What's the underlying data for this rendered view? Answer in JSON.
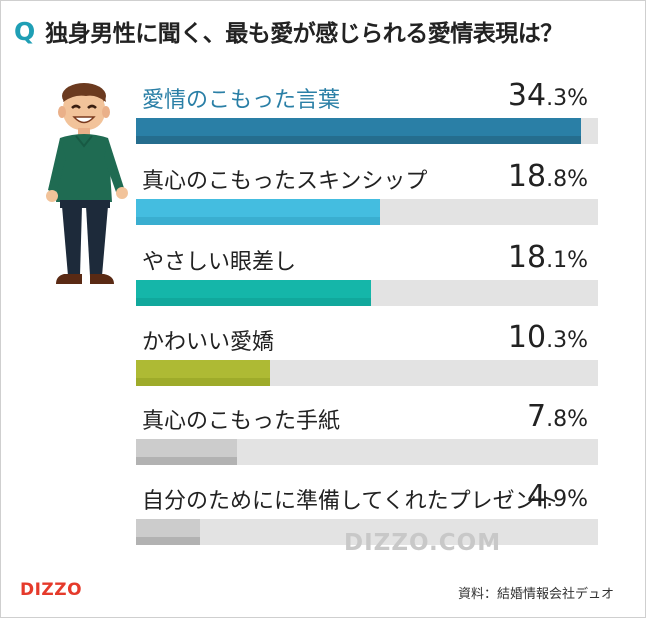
{
  "question": {
    "mark": "Q",
    "text": "独身男性に聞く、最も愛が感じられる愛情表現は？"
  },
  "chart_data": {
    "type": "bar",
    "orientation": "horizontal",
    "title": "独身男性に聞く、最も愛が感じられる愛情表現は？",
    "categories": [
      "愛情のこもった言葉",
      "真心のこもったスキンシップ",
      "やさしい眼差し",
      "かわいい愛嬌",
      "真心のこもった手紙",
      "自分のためにに準備してくれたプレゼント"
    ],
    "values": [
      34.3,
      18.8,
      18.1,
      10.3,
      7.8,
      4.9
    ],
    "value_labels": [
      {
        "int": "34",
        "dec": ".3%"
      },
      {
        "int": "18",
        "dec": ".8%"
      },
      {
        "int": "18",
        "dec": ".1%"
      },
      {
        "int": "10",
        "dec": ".3%"
      },
      {
        "int": "7",
        "dec": ".8%"
      },
      {
        "int": "4",
        "dec": ".9%"
      }
    ],
    "colors": [
      "#256d8e",
      "#3aaed0",
      "#11a89c",
      "#9eab2a",
      "#b2b2b2",
      "#b2b2b2"
    ],
    "highlight_colors": [
      "#2a7fa6",
      "#44bde0",
      "#15b6a9",
      "#aeba34",
      "#cccccc",
      "#cccccc"
    ],
    "first_label_color": "#2a7fa6",
    "xlim": [
      0,
      35
    ],
    "grid": false,
    "legend": "none"
  },
  "watermark": "DIZZO.COM",
  "logo": "DIZZO",
  "source": "資料：結婚情報会社デュオ",
  "icons": {
    "illustration": "smiling-man-illustration"
  }
}
